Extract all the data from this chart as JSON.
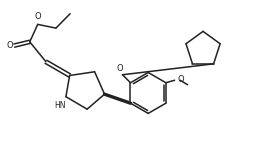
{
  "bg_color": "#ffffff",
  "line_color": "#222222",
  "line_width": 1.1,
  "figsize": [
    2.54,
    1.51
  ],
  "dpi": 100,
  "xlim": [
    0,
    10
  ],
  "ylim": [
    0,
    6
  ]
}
